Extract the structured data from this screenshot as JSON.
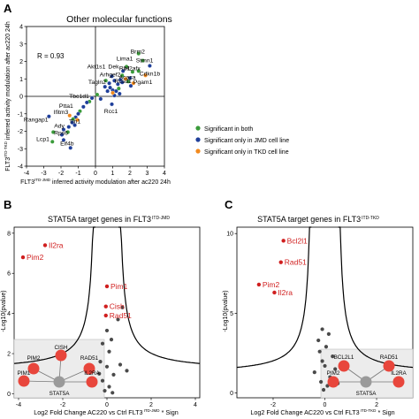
{
  "panels": {
    "A": {
      "letter": "A",
      "title": "Other molecular functions",
      "r_text": "R = 0.93",
      "ylabel_pre": "FLT3",
      "ylabel_sup": "ITD-TKD",
      "ylabel_post": "inferred activity modulation after ac220 24h",
      "xlabel_pre": "FLT3",
      "xlabel_sup": "ITD-JMD",
      "xlabel_post": "inferred activity modulation after ac220 24h",
      "legend": [
        {
          "label": "Significant in both",
          "color": "#3a9b3a"
        },
        {
          "label": "Significant only in JMD cell line",
          "color": "#1f3f9a"
        },
        {
          "label": "Significant only in TKD cell line",
          "color": "#f28a1e"
        }
      ]
    },
    "B": {
      "letter": "B",
      "title_pre": "STAT5A target genes in FLT3",
      "title_sup": "ITD-JMD",
      "ylabel": "-Log10(pvalue)",
      "xlabel_pre": "Log2 Fold Change AC220 vs Ctrl FLT3",
      "xlabel_sup": "ITD-JMD",
      "xlabel_post": "* Sign",
      "network": {
        "center": "STAT5A",
        "nodes": [
          "PIM2",
          "CISH",
          "RAD51",
          "PIM1",
          "IL2RA"
        ]
      }
    },
    "C": {
      "letter": "C",
      "title_pre": "STAT5A target genes in FLT3",
      "title_sup": "ITD-TKD",
      "ylabel": "-Log10(pvalue)",
      "xlabel_pre": "Log2 Fold Change AC220 vs Ctrl FLT3",
      "xlabel_sup": "ITD-TKD",
      "xlabel_post": "* Sign",
      "network": {
        "center": "STAT5A",
        "nodes": [
          "BCL2L1",
          "RAD51",
          "PIM2",
          "IL2RA"
        ]
      }
    }
  },
  "chart_data": [
    {
      "type": "scatter",
      "title": "Other molecular functions",
      "xlabel": "FLT3 ITD-JMD inferred activity modulation after ac220 24h",
      "ylabel": "FLT3 ITD-TKD inferred activity modulation after ac220 24h",
      "xlim": [
        -4,
        4
      ],
      "ylim": [
        -4,
        4
      ],
      "xticks": [
        -4,
        -3,
        -2,
        -1,
        0,
        1,
        2,
        3,
        4
      ],
      "yticks": [
        -4,
        -3,
        -2,
        -1,
        0,
        1,
        2,
        3,
        4
      ],
      "points": [
        {
          "x": 2.5,
          "y": 2.45,
          "c": "both"
        },
        {
          "x": 2.75,
          "y": 2.05,
          "c": "both"
        },
        {
          "x": 3.15,
          "y": 1.75,
          "c": "jmd"
        },
        {
          "x": 2.5,
          "y": 1.45,
          "c": "both"
        },
        {
          "x": 2.15,
          "y": 1.4,
          "c": "both"
        },
        {
          "x": 2.9,
          "y": 1.2,
          "c": "tkd"
        },
        {
          "x": 1.8,
          "y": 1.7,
          "c": "both"
        },
        {
          "x": 1.6,
          "y": 1.45,
          "c": "jmd"
        },
        {
          "x": 1.55,
          "y": 1.2,
          "c": "both"
        },
        {
          "x": 2.0,
          "y": 1.05,
          "c": "jmd"
        },
        {
          "x": 1.75,
          "y": 1.0,
          "c": "tkd"
        },
        {
          "x": 1.45,
          "y": 0.95,
          "c": "jmd"
        },
        {
          "x": 1.9,
          "y": 0.85,
          "c": "both"
        },
        {
          "x": 1.55,
          "y": 0.8,
          "c": "jmd"
        },
        {
          "x": 2.2,
          "y": 0.75,
          "c": "tkd"
        },
        {
          "x": 2.05,
          "y": 0.6,
          "c": "jmd"
        },
        {
          "x": 1.3,
          "y": 0.7,
          "c": "jmd"
        },
        {
          "x": 1.1,
          "y": 0.9,
          "c": "jmd"
        },
        {
          "x": 0.95,
          "y": 1.15,
          "c": "jmd"
        },
        {
          "x": 0.8,
          "y": 0.75,
          "c": "jmd"
        },
        {
          "x": 0.85,
          "y": 0.5,
          "c": "jmd"
        },
        {
          "x": 1.0,
          "y": 0.35,
          "c": "jmd"
        },
        {
          "x": 1.2,
          "y": 0.3,
          "c": "jmd"
        },
        {
          "x": 0.7,
          "y": 0.3,
          "c": "jmd"
        },
        {
          "x": 0.6,
          "y": 0.9,
          "c": "both"
        },
        {
          "x": 0.55,
          "y": 0.55,
          "c": "jmd"
        },
        {
          "x": 1.4,
          "y": 0.15,
          "c": "jmd"
        },
        {
          "x": 1.1,
          "y": 0.05,
          "c": "jmd"
        },
        {
          "x": 1.35,
          "y": 0.45,
          "c": "both"
        },
        {
          "x": 1.0,
          "y": 0.2,
          "c": "tkd"
        },
        {
          "x": 0.1,
          "y": 0.1,
          "c": "both"
        },
        {
          "x": -0.2,
          "y": -0.1,
          "c": "jmd"
        },
        {
          "x": -0.35,
          "y": -0.3,
          "c": "both"
        },
        {
          "x": -0.5,
          "y": -0.35,
          "c": "jmd"
        },
        {
          "x": 0.95,
          "y": -0.45,
          "c": "jmd"
        },
        {
          "x": 0.3,
          "y": -0.15,
          "c": "jmd"
        },
        {
          "x": -0.7,
          "y": -0.6,
          "c": "jmd"
        },
        {
          "x": -0.9,
          "y": -0.85,
          "c": "both"
        },
        {
          "x": -1.0,
          "y": -1.0,
          "c": "jmd"
        },
        {
          "x": -1.15,
          "y": -1.2,
          "c": "jmd"
        },
        {
          "x": -1.3,
          "y": -1.3,
          "c": "both"
        },
        {
          "x": -1.05,
          "y": -1.35,
          "c": "tkd"
        },
        {
          "x": -1.5,
          "y": -1.1,
          "c": "tkd"
        },
        {
          "x": -1.35,
          "y": -1.5,
          "c": "jmd"
        },
        {
          "x": -1.2,
          "y": -1.65,
          "c": "jmd"
        },
        {
          "x": -1.55,
          "y": -1.75,
          "c": "jmd"
        },
        {
          "x": -1.85,
          "y": -1.9,
          "c": "jmd"
        },
        {
          "x": -1.6,
          "y": -2.05,
          "c": "both"
        },
        {
          "x": -1.95,
          "y": -2.2,
          "c": "jmd"
        },
        {
          "x": -2.45,
          "y": -2.05,
          "c": "both"
        },
        {
          "x": -1.85,
          "y": -2.5,
          "c": "jmd"
        },
        {
          "x": -2.5,
          "y": -2.6,
          "c": "both"
        },
        {
          "x": -2.7,
          "y": -1.15,
          "c": "jmd"
        },
        {
          "x": -1.45,
          "y": -2.95,
          "c": "jmd"
        }
      ],
      "labels": [
        {
          "text": "Brm2",
          "x": 2.45,
          "y": 2.45
        },
        {
          "text": "Lima1",
          "x": 1.7,
          "y": 2.05
        },
        {
          "text": "Stmn1",
          "x": 2.85,
          "y": 1.95
        },
        {
          "text": "Akt1s1",
          "x": 0.05,
          "y": 1.6
        },
        {
          "text": "Dek",
          "x": 1.05,
          "y": 1.6
        },
        {
          "text": "Rb1",
          "x": 1.7,
          "y": 1.5
        },
        {
          "text": "H2afx",
          "x": 2.15,
          "y": 1.5
        },
        {
          "text": "Cdkn1b",
          "x": 3.15,
          "y": 1.2
        },
        {
          "text": "Arhgef2",
          "x": 0.85,
          "y": 1.15
        },
        {
          "text": "Acaca",
          "x": 1.85,
          "y": 1.0
        },
        {
          "text": "Pgam1",
          "x": 2.75,
          "y": 0.7
        },
        {
          "text": "Rcsd1",
          "x": 1.6,
          "y": 0.75
        },
        {
          "text": "Tagln2",
          "x": 0.1,
          "y": 0.7
        },
        {
          "text": "Tbc1d1",
          "x": -0.95,
          "y": -0.1
        },
        {
          "text": "Rcc1",
          "x": 0.9,
          "y": -0.95
        },
        {
          "text": "Ptta1",
          "x": -1.7,
          "y": -0.65
        },
        {
          "text": "Ifitm3",
          "x": -2.0,
          "y": -1.0
        },
        {
          "text": "Rangap1",
          "x": -3.45,
          "y": -1.45
        },
        {
          "text": "Tln1",
          "x": -1.2,
          "y": -1.55
        },
        {
          "text": "Ady",
          "x": -2.1,
          "y": -1.8
        },
        {
          "text": "Rps6",
          "x": -2.0,
          "y": -2.2
        },
        {
          "text": "Lcp1",
          "x": -3.05,
          "y": -2.55
        },
        {
          "text": "Eif4b",
          "x": -1.65,
          "y": -2.8
        }
      ]
    },
    {
      "type": "scatter",
      "title": "STAT5A target genes in FLT3 ITD-JMD",
      "xlabel": "Log2 Fold Change AC220 vs Ctrl FLT3 ITD-JMD * Sign",
      "ylabel": "-Log10(pvalue)",
      "xlim": [
        -4.2,
        4.2
      ],
      "ylim": [
        -0.2,
        8.3
      ],
      "xticks": [
        -4,
        -2,
        0,
        2,
        4
      ],
      "yticks": [
        0,
        2,
        4,
        6,
        8
      ],
      "highlighted": [
        {
          "label": "Il2ra",
          "x": -2.8,
          "y": 7.4
        },
        {
          "label": "Pim2",
          "x": -3.8,
          "y": 6.8
        },
        {
          "label": "Pim1",
          "x": 0.0,
          "y": 5.35
        },
        {
          "label": "Cish",
          "x": -0.05,
          "y": 4.35
        },
        {
          "label": "Rad51",
          "x": -0.05,
          "y": 3.9
        }
      ],
      "others": [
        [
          0.7,
          4.3
        ],
        [
          0.5,
          3.7
        ],
        [
          0.0,
          3.15
        ],
        [
          0.2,
          2.7
        ],
        [
          -0.2,
          2.5
        ],
        [
          0.1,
          2.1
        ],
        [
          -0.3,
          1.6
        ],
        [
          0.0,
          1.35
        ],
        [
          0.6,
          1.45
        ],
        [
          0.9,
          1.15
        ],
        [
          0.3,
          0.95
        ],
        [
          -0.2,
          0.65
        ],
        [
          0.1,
          0.35
        ],
        [
          -0.1,
          0.15
        ],
        [
          0.25,
          0.05
        ],
        [
          -0.35,
          1.0
        ]
      ],
      "threshold_curve": "hyperbola"
    },
    {
      "type": "scatter",
      "title": "STAT5A target genes in FLT3 ITD-TKD",
      "xlabel": "Log2 Fold Change AC220 vs Ctrl FLT3 ITD-TKD * Sign",
      "ylabel": "-Log10(pvalue)",
      "xlim": [
        -3.4,
        3.4
      ],
      "ylim": [
        -0.3,
        10.4
      ],
      "xticks": [
        -2,
        0,
        2
      ],
      "yticks": [
        0,
        5,
        10
      ],
      "highlighted": [
        {
          "label": "Bcl2l1",
          "x": -1.6,
          "y": 9.55
        },
        {
          "label": "Rad51",
          "x": -1.7,
          "y": 8.2
        },
        {
          "label": "Pim2",
          "x": -2.55,
          "y": 6.8
        },
        {
          "label": "Il2ra",
          "x": -1.95,
          "y": 6.3
        }
      ],
      "others": [
        [
          -0.1,
          4.0
        ],
        [
          0.15,
          3.7
        ],
        [
          -0.25,
          3.3
        ],
        [
          0.05,
          2.9
        ],
        [
          -0.2,
          2.6
        ],
        [
          0.3,
          2.3
        ],
        [
          -0.1,
          2.0
        ],
        [
          0.0,
          1.7
        ],
        [
          0.4,
          1.5
        ],
        [
          -0.4,
          1.3
        ],
        [
          0.2,
          1.0
        ],
        [
          -0.15,
          0.7
        ],
        [
          0.1,
          0.45
        ],
        [
          -0.05,
          0.2
        ],
        [
          0.5,
          0.6
        ]
      ],
      "threshold_curve": "hyperbola"
    }
  ]
}
